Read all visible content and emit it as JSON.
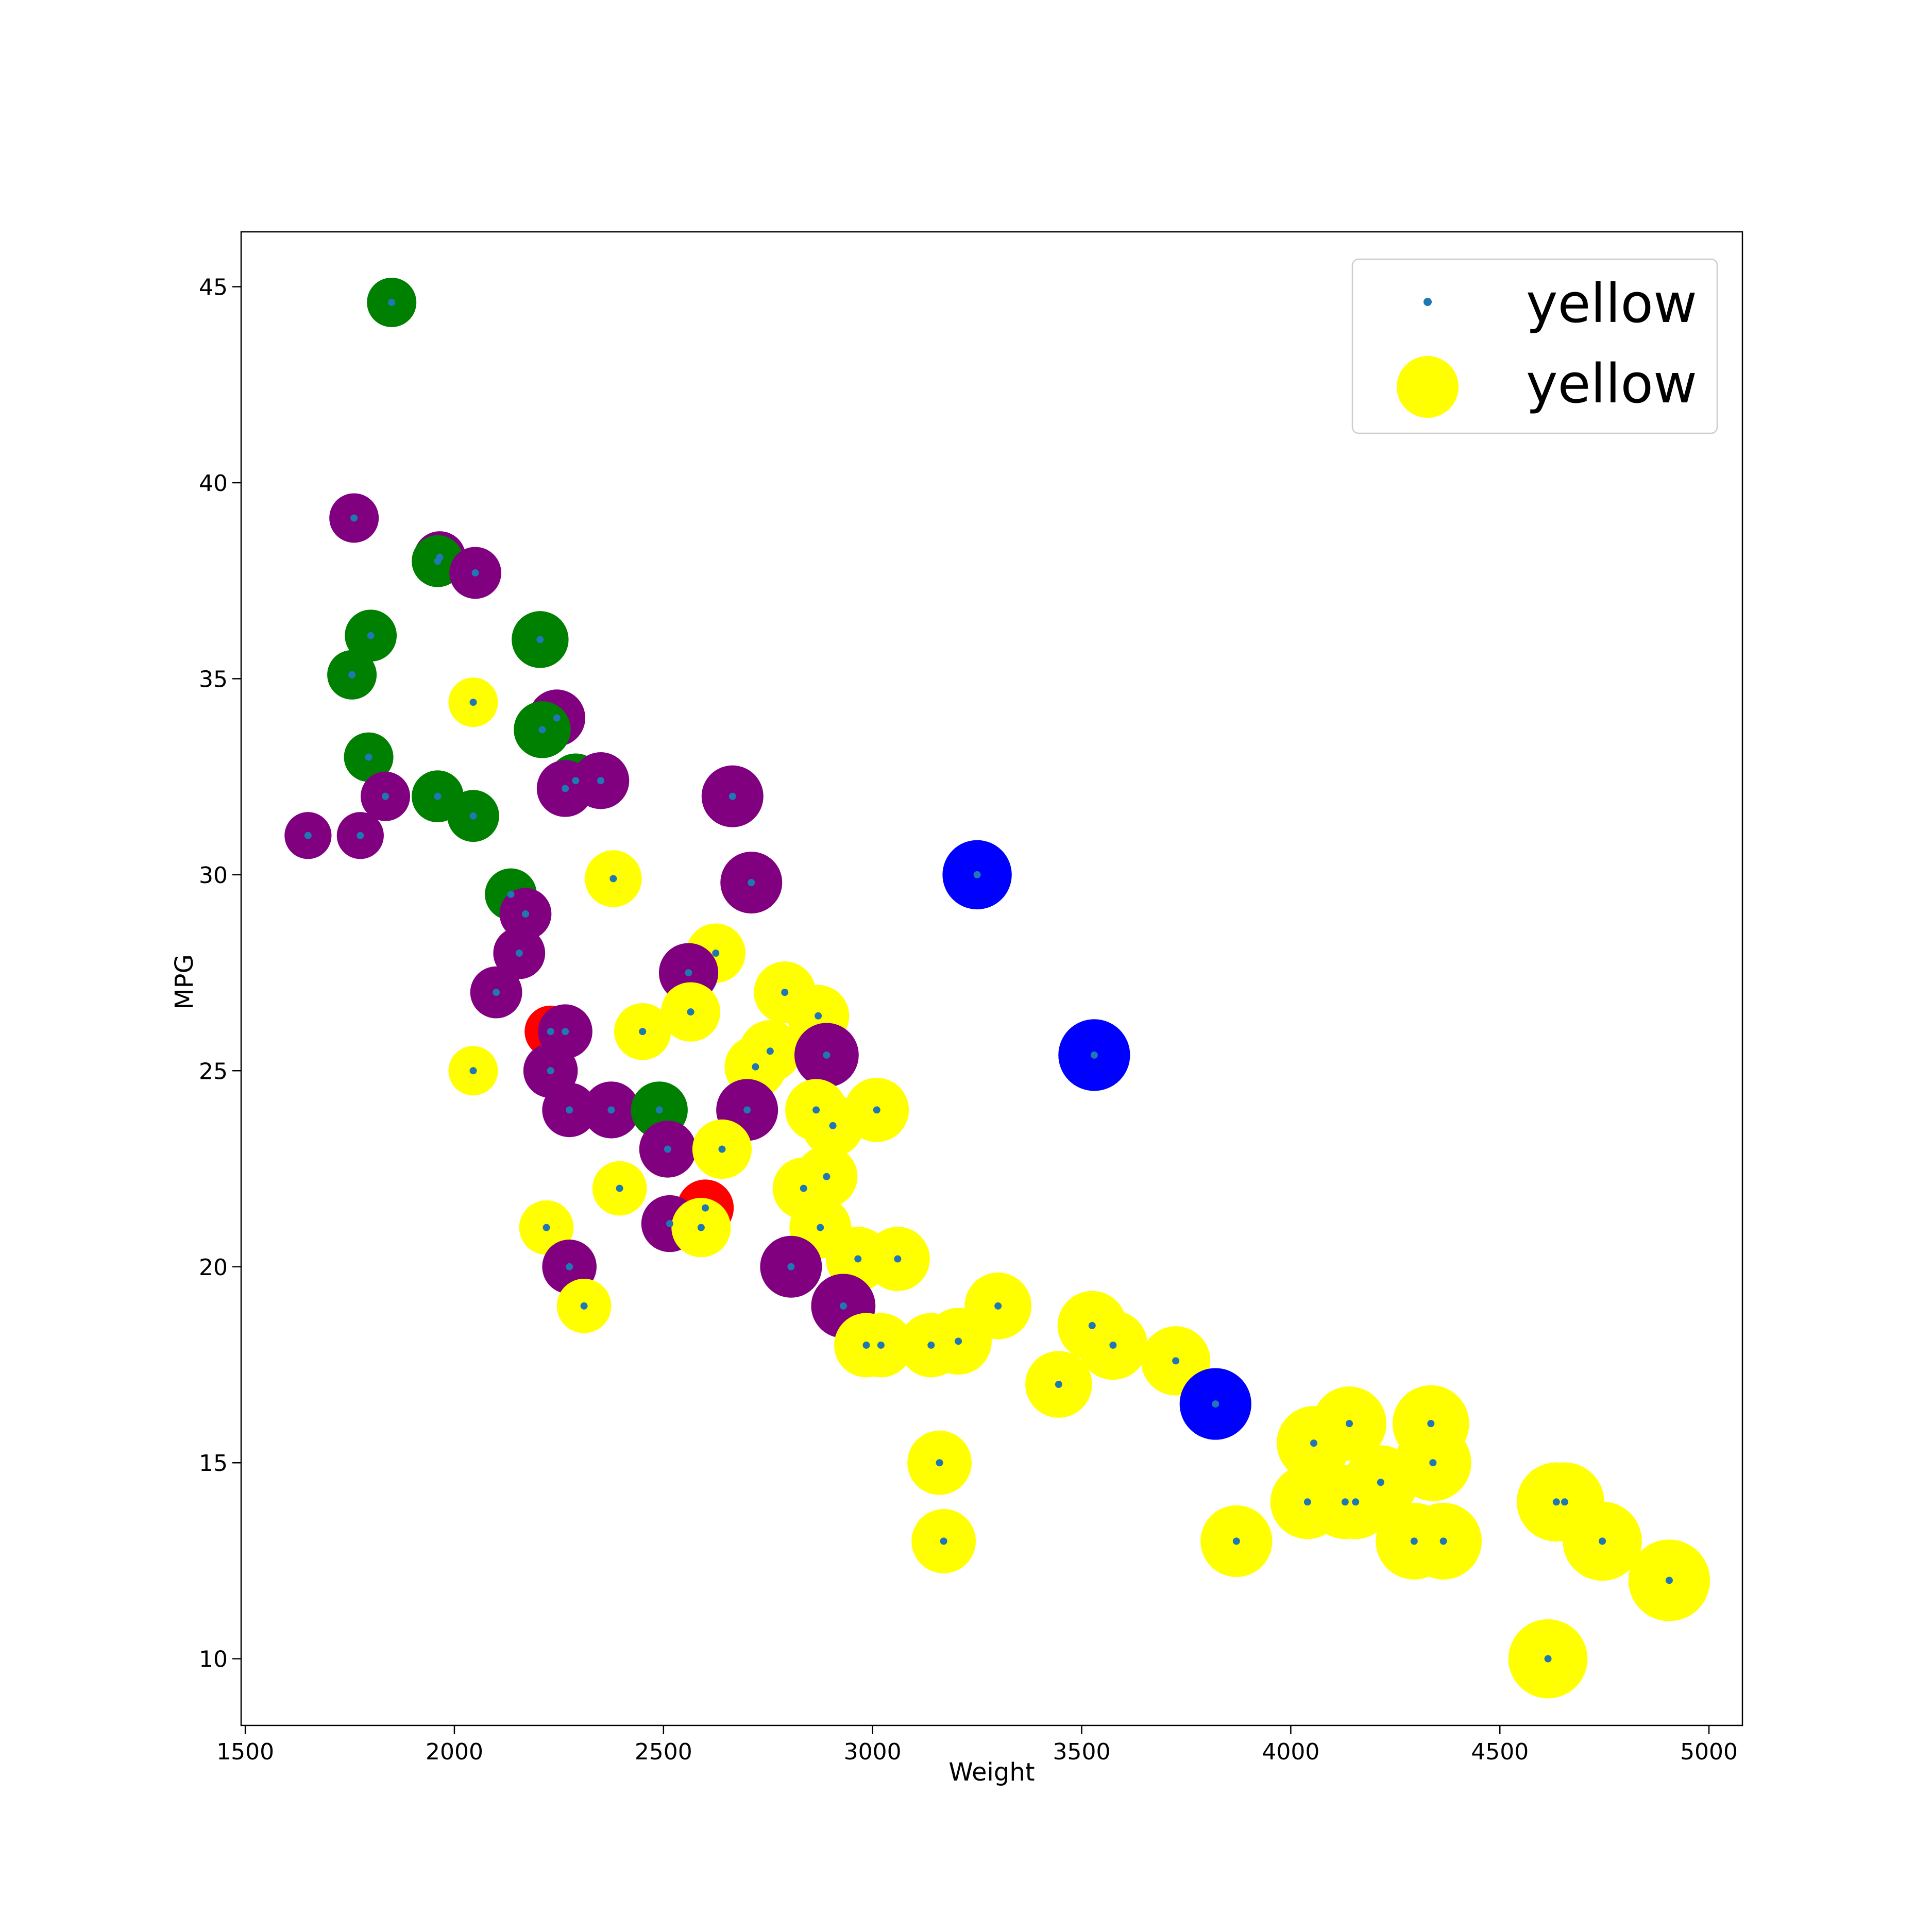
{
  "chart_data": {
    "type": "scatter",
    "xlabel": "Weight",
    "ylabel": "MPG",
    "xlim": [
      1490,
      5080
    ],
    "ylim": [
      8.3,
      46.4
    ],
    "x_ticks": [
      1500,
      2000,
      2500,
      3000,
      3500,
      4000,
      4500,
      5000
    ],
    "y_ticks": [
      10,
      15,
      20,
      25,
      30,
      35,
      40,
      45
    ],
    "x_tick_labels": [
      "1500",
      "2000",
      "2500",
      "3000",
      "3500",
      "4000",
      "4500",
      "5000"
    ],
    "y_tick_labels": [
      "10",
      "15",
      "20",
      "25",
      "30",
      "35",
      "40",
      "45"
    ],
    "legend": {
      "placement": "top-right",
      "entries": [
        {
          "label": "yellow",
          "marker": "small-dot",
          "color": "#1f77b4"
        },
        {
          "label": "yellow",
          "marker": "large-circle",
          "color": "#ffff00"
        }
      ]
    },
    "center_marker_color": "#1f77b4",
    "colors": {
      "green": "#008000",
      "purple": "#800080",
      "yellow": "#ffff00",
      "red": "#ff0000",
      "blue": "#0000ff"
    },
    "points": [
      {
        "x": 1850,
        "y": 44.6,
        "color": "green",
        "size": 1.0
      },
      {
        "x": 1760,
        "y": 39.1,
        "color": "purple",
        "size": 1.0
      },
      {
        "x": 1965,
        "y": 38.1,
        "color": "purple",
        "size": 1.05
      },
      {
        "x": 1960,
        "y": 38.0,
        "color": "green",
        "size": 1.05
      },
      {
        "x": 2050,
        "y": 37.7,
        "color": "purple",
        "size": 1.05
      },
      {
        "x": 1800,
        "y": 36.1,
        "color": "green",
        "size": 1.05
      },
      {
        "x": 2205,
        "y": 36.0,
        "color": "green",
        "size": 1.15
      },
      {
        "x": 1755,
        "y": 35.1,
        "color": "green",
        "size": 1.0
      },
      {
        "x": 2045,
        "y": 34.4,
        "color": "yellow",
        "size": 1.0
      },
      {
        "x": 2245,
        "y": 34.0,
        "color": "purple",
        "size": 1.15
      },
      {
        "x": 2210,
        "y": 33.7,
        "color": "green",
        "size": 1.15
      },
      {
        "x": 1795,
        "y": 33.0,
        "color": "green",
        "size": 1.0
      },
      {
        "x": 2290,
        "y": 32.4,
        "color": "green",
        "size": 1.1
      },
      {
        "x": 2350,
        "y": 32.4,
        "color": "purple",
        "size": 1.15
      },
      {
        "x": 2265,
        "y": 32.2,
        "color": "purple",
        "size": 1.15
      },
      {
        "x": 1835,
        "y": 32.0,
        "color": "purple",
        "size": 1.0
      },
      {
        "x": 1960,
        "y": 32.0,
        "color": "green",
        "size": 1.05
      },
      {
        "x": 2665,
        "y": 32.0,
        "color": "purple",
        "size": 1.25
      },
      {
        "x": 2045,
        "y": 31.5,
        "color": "green",
        "size": 1.05
      },
      {
        "x": 1650,
        "y": 31.0,
        "color": "purple",
        "size": 0.95
      },
      {
        "x": 1775,
        "y": 31.0,
        "color": "purple",
        "size": 0.95
      },
      {
        "x": 3250,
        "y": 30.0,
        "color": "blue",
        "size": 1.4
      },
      {
        "x": 2380,
        "y": 29.9,
        "color": "yellow",
        "size": 1.15
      },
      {
        "x": 2710,
        "y": 29.8,
        "color": "purple",
        "size": 1.25
      },
      {
        "x": 2135,
        "y": 29.5,
        "color": "green",
        "size": 1.05
      },
      {
        "x": 2170,
        "y": 29.0,
        "color": "purple",
        "size": 1.05
      },
      {
        "x": 2155,
        "y": 28.0,
        "color": "purple",
        "size": 1.05
      },
      {
        "x": 2625,
        "y": 28.0,
        "color": "yellow",
        "size": 1.2
      },
      {
        "x": 2560,
        "y": 27.5,
        "color": "purple",
        "size": 1.2
      },
      {
        "x": 2100,
        "y": 27.0,
        "color": "purple",
        "size": 1.05
      },
      {
        "x": 2790,
        "y": 27.0,
        "color": "yellow",
        "size": 1.25
      },
      {
        "x": 2565,
        "y": 26.5,
        "color": "yellow",
        "size": 1.2
      },
      {
        "x": 2870,
        "y": 26.4,
        "color": "yellow",
        "size": 1.25
      },
      {
        "x": 2230,
        "y": 26.0,
        "color": "red",
        "size": 1.05
      },
      {
        "x": 2265,
        "y": 26.0,
        "color": "purple",
        "size": 1.1
      },
      {
        "x": 2450,
        "y": 26.0,
        "color": "yellow",
        "size": 1.15
      },
      {
        "x": 2755,
        "y": 25.5,
        "color": "yellow",
        "size": 1.25
      },
      {
        "x": 3530,
        "y": 25.4,
        "color": "blue",
        "size": 1.45
      },
      {
        "x": 2890,
        "y": 25.4,
        "color": "purple",
        "size": 1.3
      },
      {
        "x": 2720,
        "y": 25.1,
        "color": "yellow",
        "size": 1.25
      },
      {
        "x": 2045,
        "y": 25.0,
        "color": "yellow",
        "size": 1.0
      },
      {
        "x": 2230,
        "y": 25.0,
        "color": "purple",
        "size": 1.1
      },
      {
        "x": 2275,
        "y": 24.0,
        "color": "purple",
        "size": 1.1
      },
      {
        "x": 2375,
        "y": 24.0,
        "color": "purple",
        "size": 1.15
      },
      {
        "x": 2490,
        "y": 24.0,
        "color": "green",
        "size": 1.15
      },
      {
        "x": 2700,
        "y": 24.0,
        "color": "purple",
        "size": 1.25
      },
      {
        "x": 2865,
        "y": 24.0,
        "color": "yellow",
        "size": 1.25
      },
      {
        "x": 3010,
        "y": 24.0,
        "color": "yellow",
        "size": 1.3
      },
      {
        "x": 2905,
        "y": 23.6,
        "color": "yellow",
        "size": 1.25
      },
      {
        "x": 2510,
        "y": 23.0,
        "color": "purple",
        "size": 1.15
      },
      {
        "x": 2640,
        "y": 23.0,
        "color": "yellow",
        "size": 1.2
      },
      {
        "x": 2890,
        "y": 22.3,
        "color": "yellow",
        "size": 1.25
      },
      {
        "x": 2395,
        "y": 22.0,
        "color": "yellow",
        "size": 1.1
      },
      {
        "x": 2835,
        "y": 22.0,
        "color": "yellow",
        "size": 1.25
      },
      {
        "x": 2600,
        "y": 21.5,
        "color": "red",
        "size": 1.15
      },
      {
        "x": 2515,
        "y": 21.1,
        "color": "purple",
        "size": 1.15
      },
      {
        "x": 2220,
        "y": 21.0,
        "color": "yellow",
        "size": 1.1
      },
      {
        "x": 2590,
        "y": 21.0,
        "color": "yellow",
        "size": 1.2
      },
      {
        "x": 2875,
        "y": 21.0,
        "color": "yellow",
        "size": 1.25
      },
      {
        "x": 2965,
        "y": 20.2,
        "color": "yellow",
        "size": 1.3
      },
      {
        "x": 3060,
        "y": 20.2,
        "color": "yellow",
        "size": 1.3
      },
      {
        "x": 2275,
        "y": 20.0,
        "color": "purple",
        "size": 1.1
      },
      {
        "x": 2805,
        "y": 20.0,
        "color": "purple",
        "size": 1.25
      },
      {
        "x": 2310,
        "y": 19.0,
        "color": "yellow",
        "size": 1.1
      },
      {
        "x": 2930,
        "y": 19.0,
        "color": "purple",
        "size": 1.3
      },
      {
        "x": 3300,
        "y": 19.0,
        "color": "yellow",
        "size": 1.35
      },
      {
        "x": 3525,
        "y": 18.5,
        "color": "yellow",
        "size": 1.4
      },
      {
        "x": 3205,
        "y": 18.1,
        "color": "yellow",
        "size": 1.35
      },
      {
        "x": 2985,
        "y": 18.0,
        "color": "yellow",
        "size": 1.3
      },
      {
        "x": 3020,
        "y": 18.0,
        "color": "yellow",
        "size": 1.3
      },
      {
        "x": 3140,
        "y": 18.0,
        "color": "yellow",
        "size": 1.3
      },
      {
        "x": 3575,
        "y": 18.0,
        "color": "yellow",
        "size": 1.4
      },
      {
        "x": 3725,
        "y": 17.6,
        "color": "yellow",
        "size": 1.4
      },
      {
        "x": 3445,
        "y": 17.0,
        "color": "yellow",
        "size": 1.35
      },
      {
        "x": 3820,
        "y": 16.5,
        "color": "blue",
        "size": 1.45
      },
      {
        "x": 4140,
        "y": 16.0,
        "color": "yellow",
        "size": 1.5
      },
      {
        "x": 4335,
        "y": 16.0,
        "color": "yellow",
        "size": 1.55
      },
      {
        "x": 4055,
        "y": 15.5,
        "color": "yellow",
        "size": 1.5
      },
      {
        "x": 3160,
        "y": 15.0,
        "color": "yellow",
        "size": 1.3
      },
      {
        "x": 4340,
        "y": 15.0,
        "color": "yellow",
        "size": 1.55
      },
      {
        "x": 4215,
        "y": 14.5,
        "color": "yellow",
        "size": 1.5
      },
      {
        "x": 4040,
        "y": 14.0,
        "color": "yellow",
        "size": 1.5
      },
      {
        "x": 4130,
        "y": 14.0,
        "color": "yellow",
        "size": 1.5
      },
      {
        "x": 4155,
        "y": 14.0,
        "color": "yellow",
        "size": 1.5
      },
      {
        "x": 4635,
        "y": 14.0,
        "color": "yellow",
        "size": 1.6
      },
      {
        "x": 4655,
        "y": 14.0,
        "color": "yellow",
        "size": 1.6
      },
      {
        "x": 3170,
        "y": 13.0,
        "color": "yellow",
        "size": 1.3
      },
      {
        "x": 3870,
        "y": 13.0,
        "color": "yellow",
        "size": 1.45
      },
      {
        "x": 4295,
        "y": 13.0,
        "color": "yellow",
        "size": 1.55
      },
      {
        "x": 4365,
        "y": 13.0,
        "color": "yellow",
        "size": 1.55
      },
      {
        "x": 4745,
        "y": 13.0,
        "color": "yellow",
        "size": 1.6
      },
      {
        "x": 4905,
        "y": 12.0,
        "color": "yellow",
        "size": 1.65
      },
      {
        "x": 4615,
        "y": 10.0,
        "color": "yellow",
        "size": 1.6
      }
    ]
  }
}
